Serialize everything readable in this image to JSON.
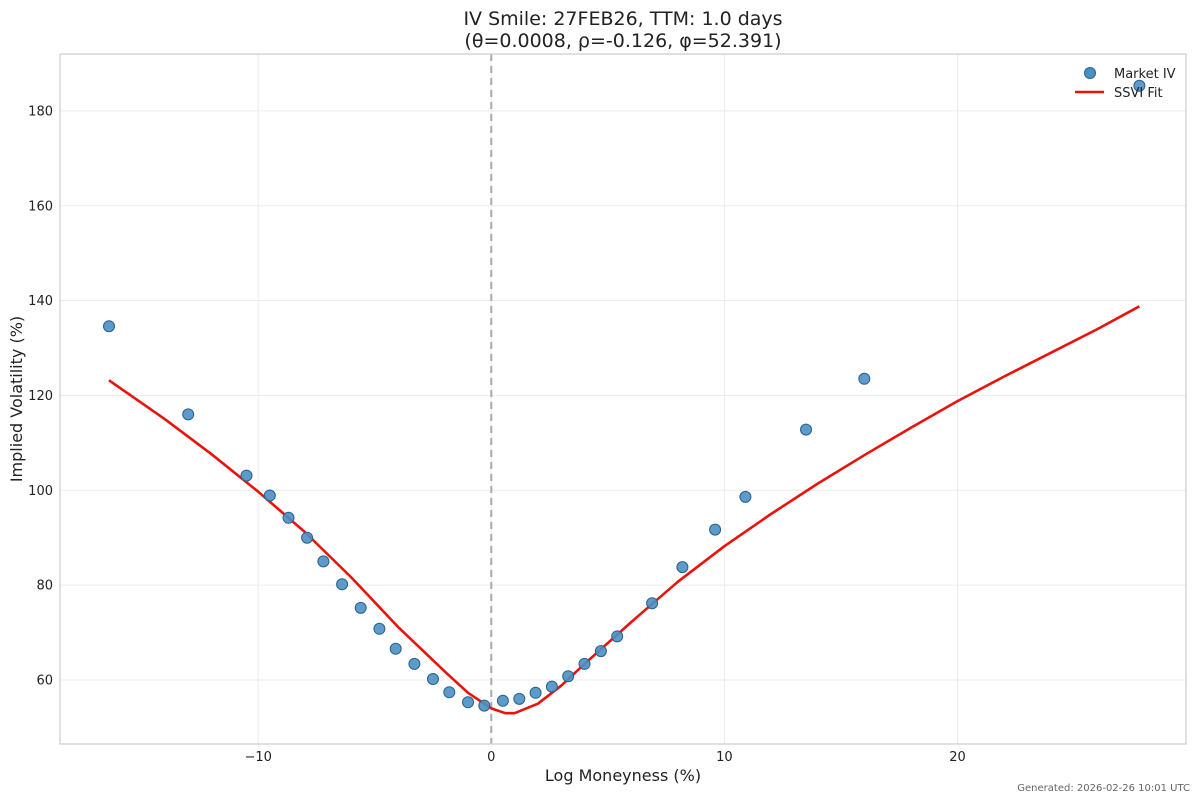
{
  "chart_data": {
    "type": "scatter",
    "title": "IV Smile: 27FEB26, TTM: 1.0 days",
    "subtitle": "(θ=0.0008, ρ=-0.126, φ=52.391)",
    "xlabel": "Log Moneyness (%)",
    "ylabel": "Implied Volatility (%)",
    "xlim": [
      -18.5,
      29.8
    ],
    "ylim": [
      46.5,
      192
    ],
    "x_ticks": [
      -10,
      0,
      10,
      20
    ],
    "x_tick_labels": [
      "−10",
      "0",
      "10",
      "20"
    ],
    "y_ticks": [
      60,
      80,
      100,
      120,
      140,
      160,
      180
    ],
    "y_tick_labels": [
      "60",
      "80",
      "100",
      "120",
      "140",
      "160",
      "180"
    ],
    "grid": true,
    "reference_line_x": 0,
    "legend_position": "top-right",
    "footer": "Generated: 2026-02-26 10:01 UTC",
    "series": [
      {
        "name": "Market IV",
        "kind": "scatter",
        "color": "#4a90c4",
        "edge_color": "#2b5f8a",
        "points": [
          {
            "x": -16.4,
            "y": 134.6
          },
          {
            "x": -13.0,
            "y": 116.0
          },
          {
            "x": -10.5,
            "y": 103.1
          },
          {
            "x": -9.5,
            "y": 98.9
          },
          {
            "x": -8.7,
            "y": 94.2
          },
          {
            "x": -7.9,
            "y": 90.0
          },
          {
            "x": -7.2,
            "y": 85.0
          },
          {
            "x": -6.4,
            "y": 80.2
          },
          {
            "x": -5.6,
            "y": 75.2
          },
          {
            "x": -4.8,
            "y": 70.8
          },
          {
            "x": -4.1,
            "y": 66.6
          },
          {
            "x": -3.3,
            "y": 63.4
          },
          {
            "x": -2.5,
            "y": 60.2
          },
          {
            "x": -1.8,
            "y": 57.4
          },
          {
            "x": -1.0,
            "y": 55.3
          },
          {
            "x": -0.3,
            "y": 54.6
          },
          {
            "x": 0.5,
            "y": 55.6
          },
          {
            "x": 1.2,
            "y": 56.0
          },
          {
            "x": 1.9,
            "y": 57.3
          },
          {
            "x": 2.6,
            "y": 58.6
          },
          {
            "x": 3.3,
            "y": 60.8
          },
          {
            "x": 4.0,
            "y": 63.4
          },
          {
            "x": 4.7,
            "y": 66.1
          },
          {
            "x": 5.4,
            "y": 69.2
          },
          {
            "x": 6.9,
            "y": 76.2
          },
          {
            "x": 8.2,
            "y": 83.8
          },
          {
            "x": 9.6,
            "y": 91.7
          },
          {
            "x": 10.9,
            "y": 98.6
          },
          {
            "x": 13.5,
            "y": 112.8
          },
          {
            "x": 16.0,
            "y": 123.5
          },
          {
            "x": 27.8,
            "y": 185.3
          }
        ]
      },
      {
        "name": "SSVI Fit",
        "kind": "line",
        "color": "#e8140c",
        "points": [
          {
            "x": -16.4,
            "y": 123.2
          },
          {
            "x": -14.0,
            "y": 115.0
          },
          {
            "x": -12.0,
            "y": 107.6
          },
          {
            "x": -10.0,
            "y": 99.7
          },
          {
            "x": -8.0,
            "y": 91.2
          },
          {
            "x": -6.0,
            "y": 81.6
          },
          {
            "x": -4.0,
            "y": 71.2
          },
          {
            "x": -2.0,
            "y": 61.8
          },
          {
            "x": -1.0,
            "y": 57.3
          },
          {
            "x": 0.0,
            "y": 54.0
          },
          {
            "x": 0.6,
            "y": 53.0
          },
          {
            "x": 1.0,
            "y": 53.0
          },
          {
            "x": 2.0,
            "y": 55.0
          },
          {
            "x": 3.0,
            "y": 58.8
          },
          {
            "x": 4.0,
            "y": 63.4
          },
          {
            "x": 6.0,
            "y": 72.2
          },
          {
            "x": 8.0,
            "y": 80.7
          },
          {
            "x": 10.0,
            "y": 88.2
          },
          {
            "x": 12.0,
            "y": 95.0
          },
          {
            "x": 14.0,
            "y": 101.4
          },
          {
            "x": 16.0,
            "y": 107.4
          },
          {
            "x": 18.0,
            "y": 113.2
          },
          {
            "x": 20.0,
            "y": 118.8
          },
          {
            "x": 22.0,
            "y": 124.0
          },
          {
            "x": 24.0,
            "y": 129.0
          },
          {
            "x": 26.0,
            "y": 134.0
          },
          {
            "x": 27.8,
            "y": 138.8
          }
        ]
      }
    ]
  }
}
